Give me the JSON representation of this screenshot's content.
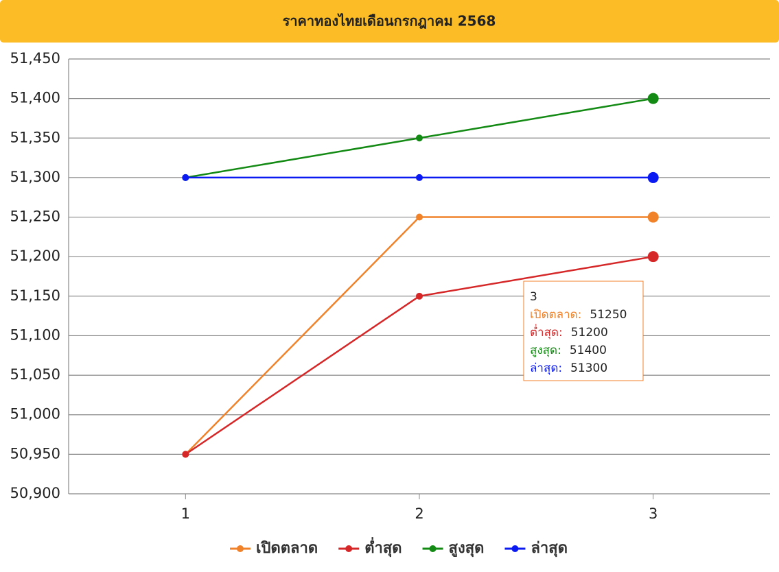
{
  "chart_data": {
    "type": "line",
    "title": "ราคาทองไทยเดือนกรกฎาคม 2568",
    "categories": [
      "1",
      "2",
      "3"
    ],
    "series": [
      {
        "name": "เปิดตลาด",
        "color": "#f0822a",
        "values": [
          50950,
          51250,
          51250
        ]
      },
      {
        "name": "ต่ำสุด",
        "color": "#d62728",
        "values": [
          50950,
          51150,
          51200
        ]
      },
      {
        "name": "สูงสุด",
        "color": "#138a13",
        "values": [
          51300,
          51350,
          51400
        ]
      },
      {
        "name": "ล่าสุด",
        "color": "#0a1af0",
        "values": [
          51300,
          51300,
          51300
        ]
      }
    ],
    "ylim": [
      50900,
      51450
    ],
    "yticks": [
      {
        "value": 50900,
        "label": "50,900"
      },
      {
        "value": 50950,
        "label": "50,950"
      },
      {
        "value": 51000,
        "label": "51,000"
      },
      {
        "value": 51050,
        "label": "51,050"
      },
      {
        "value": 51100,
        "label": "51,100"
      },
      {
        "value": 51150,
        "label": "51,150"
      },
      {
        "value": 51200,
        "label": "51,200"
      },
      {
        "value": 51250,
        "label": "51,250"
      },
      {
        "value": 51300,
        "label": "51,300"
      },
      {
        "value": 51350,
        "label": "51,350"
      },
      {
        "value": 51400,
        "label": "51,400"
      },
      {
        "value": 51450,
        "label": "51,450"
      }
    ],
    "grid": true,
    "legend": "bottom",
    "tooltip": {
      "title": "3",
      "labels": [
        "เปิดตลาด:",
        "ต่ำสุด:",
        "สูงสุด:",
        "ล่าสุด:"
      ],
      "values": [
        51250,
        51200,
        51400,
        51300
      ]
    }
  }
}
